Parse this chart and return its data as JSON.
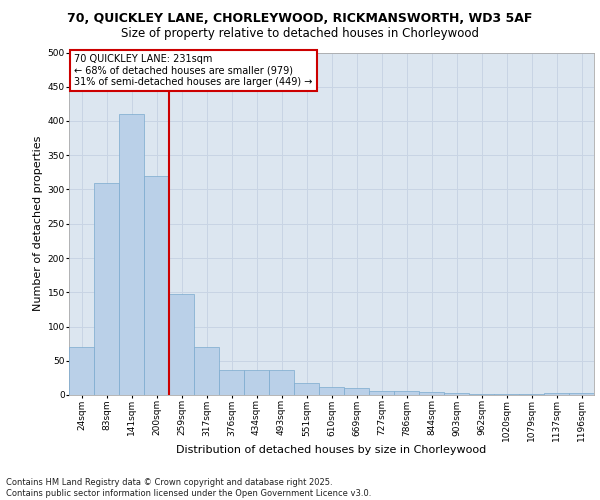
{
  "title1": "70, QUICKLEY LANE, CHORLEYWOOD, RICKMANSWORTH, WD3 5AF",
  "title2": "Size of property relative to detached houses in Chorleywood",
  "xlabel": "Distribution of detached houses by size in Chorleywood",
  "ylabel": "Number of detached properties",
  "categories": [
    "24sqm",
    "83sqm",
    "141sqm",
    "200sqm",
    "259sqm",
    "317sqm",
    "376sqm",
    "434sqm",
    "493sqm",
    "551sqm",
    "610sqm",
    "669sqm",
    "727sqm",
    "786sqm",
    "844sqm",
    "903sqm",
    "962sqm",
    "1020sqm",
    "1079sqm",
    "1137sqm",
    "1196sqm"
  ],
  "values": [
    70,
    310,
    410,
    320,
    147,
    70,
    37,
    37,
    37,
    17,
    12,
    10,
    6,
    6,
    5,
    3,
    1,
    1,
    1,
    3,
    3
  ],
  "bar_color": "#bad0e8",
  "bar_edge_color": "#7aaace",
  "vline_color": "#cc0000",
  "vline_bin_index": 3,
  "annotation_text": "70 QUICKLEY LANE: 231sqm\n← 68% of detached houses are smaller (979)\n31% of semi-detached houses are larger (449) →",
  "annotation_box_facecolor": "#ffffff",
  "annotation_box_edgecolor": "#cc0000",
  "ylim": [
    0,
    500
  ],
  "yticks": [
    0,
    50,
    100,
    150,
    200,
    250,
    300,
    350,
    400,
    450,
    500
  ],
  "grid_color": "#c8d4e4",
  "bg_color": "#dce6f0",
  "title1_fontsize": 9,
  "title2_fontsize": 8.5,
  "tick_fontsize": 6.5,
  "ylabel_fontsize": 8,
  "xlabel_fontsize": 8,
  "annot_fontsize": 7,
  "footer_fontsize": 6,
  "footer": "Contains HM Land Registry data © Crown copyright and database right 2025.\nContains public sector information licensed under the Open Government Licence v3.0."
}
